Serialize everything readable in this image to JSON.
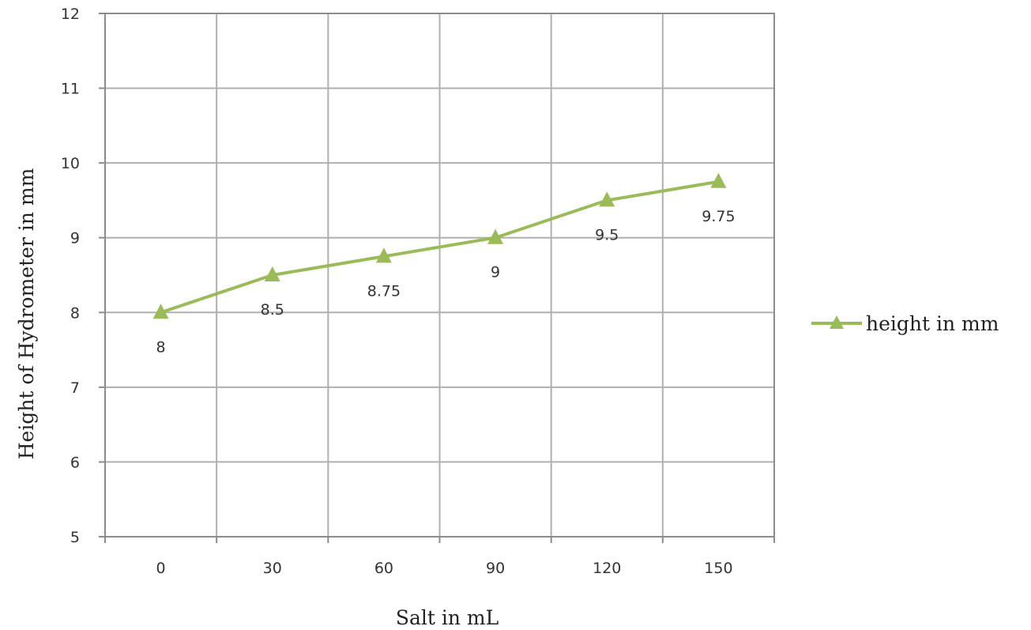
{
  "chart_data": {
    "type": "line",
    "title": "",
    "xlabel": "Salt in mL",
    "ylabel": "Height of Hydrometer in mm",
    "categories": [
      "0",
      "30",
      "60",
      "90",
      "120",
      "150"
    ],
    "yticks": [
      "5",
      "6",
      "7",
      "8",
      "9",
      "10",
      "11",
      "12"
    ],
    "ylim": [
      5,
      12
    ],
    "grid": true,
    "legend_position": "right",
    "series": [
      {
        "name": "height in mm",
        "color": "#9bbb59",
        "marker": "triangle",
        "values": [
          8,
          8.5,
          8.75,
          9,
          9.5,
          9.75
        ],
        "data_labels": [
          "8",
          "8.5",
          "8.75",
          "9",
          "9.5",
          "9.75"
        ]
      }
    ]
  }
}
